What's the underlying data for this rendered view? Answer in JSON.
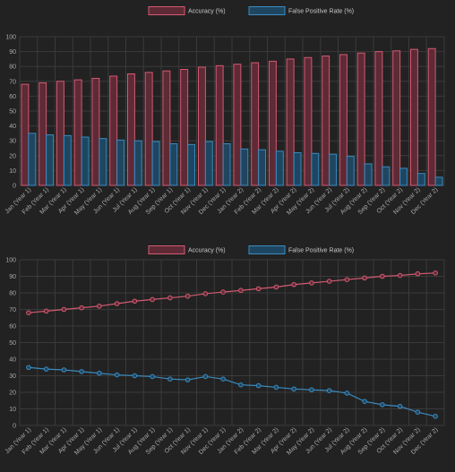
{
  "colors": {
    "background": "#222222",
    "accuracy_stroke": "#d35a72",
    "accuracy_fill": "#5e2a35",
    "fpr_stroke": "#3a8bc0",
    "fpr_fill": "#1f4660",
    "grid": "#3a3a3a",
    "text": "#a9a9a9"
  },
  "chart_data": [
    {
      "type": "bar",
      "categories": [
        "Jan (Year 1)",
        "Feb (Year 1)",
        "Mar (Year 1)",
        "Apr (Year 1)",
        "May (Year 1)",
        "Jun (Year 1)",
        "Jul (Year 1)",
        "Aug (Year 1)",
        "Sep (Year 1)",
        "Oct (Year 1)",
        "Nov (Year 1)",
        "Dec (Year 1)",
        "Jan (Year 2)",
        "Feb (Year 2)",
        "Mar (Year 2)",
        "Apr (Year 2)",
        "May (Year 2)",
        "Jun (Year 2)",
        "Jul (Year 2)",
        "Aug (Year 2)",
        "Sep (Year 2)",
        "Oct (Year 2)",
        "Nov (Year 2)",
        "Dec (Year 2)"
      ],
      "series": [
        {
          "name": "Accuracy (%)",
          "values": [
            68,
            69,
            70,
            71,
            72,
            73.5,
            75,
            76,
            77,
            78,
            79.5,
            80.5,
            81.5,
            82.5,
            83.5,
            85,
            86,
            87,
            88,
            89,
            90,
            90.5,
            91.5,
            92
          ]
        },
        {
          "name": "False Positive Rate (%)",
          "values": [
            35,
            34,
            33.5,
            32.5,
            31.5,
            30.5,
            30,
            29.5,
            28,
            27.5,
            29.5,
            28,
            24.5,
            24,
            23,
            22,
            21.5,
            21,
            19.5,
            14.5,
            12.5,
            11.5,
            8,
            5.5
          ]
        }
      ],
      "ylim": [
        0,
        100
      ],
      "yticks": [
        0,
        10,
        20,
        30,
        40,
        50,
        60,
        70,
        80,
        90,
        100
      ],
      "grid": true,
      "legend": "top-center"
    },
    {
      "type": "line",
      "categories": [
        "Jan (Year 1)",
        "Feb (Year 1)",
        "Mar (Year 1)",
        "Apr (Year 1)",
        "May (Year 1)",
        "Jun (Year 1)",
        "Jul (Year 1)",
        "Aug (Year 1)",
        "Sep (Year 1)",
        "Oct (Year 1)",
        "Nov (Year 1)",
        "Dec (Year 1)",
        "Jan (Year 2)",
        "Feb (Year 2)",
        "Mar (Year 2)",
        "Apr (Year 2)",
        "May (Year 2)",
        "Jun (Year 2)",
        "Jul (Year 2)",
        "Aug (Year 2)",
        "Sep (Year 2)",
        "Oct (Year 2)",
        "Nov (Year 2)",
        "Dec (Year 2)"
      ],
      "series": [
        {
          "name": "Accuracy (%)",
          "values": [
            68,
            69,
            70,
            71,
            72,
            73.5,
            75,
            76,
            77,
            78,
            79.5,
            80.5,
            81.5,
            82.5,
            83.5,
            85,
            86,
            87,
            88,
            89,
            90,
            90.5,
            91.5,
            92
          ]
        },
        {
          "name": "False Positive Rate (%)",
          "values": [
            35,
            34,
            33.5,
            32.5,
            31.5,
            30.5,
            30,
            29.5,
            28,
            27.5,
            29.5,
            28,
            24.5,
            24,
            23,
            22,
            21.5,
            21,
            19.5,
            14.5,
            12.5,
            11.5,
            8,
            5.5
          ]
        }
      ],
      "ylim": [
        0,
        100
      ],
      "yticks": [
        0,
        10,
        20,
        30,
        40,
        50,
        60,
        70,
        80,
        90,
        100
      ],
      "grid": true,
      "legend": "top-center"
    }
  ]
}
